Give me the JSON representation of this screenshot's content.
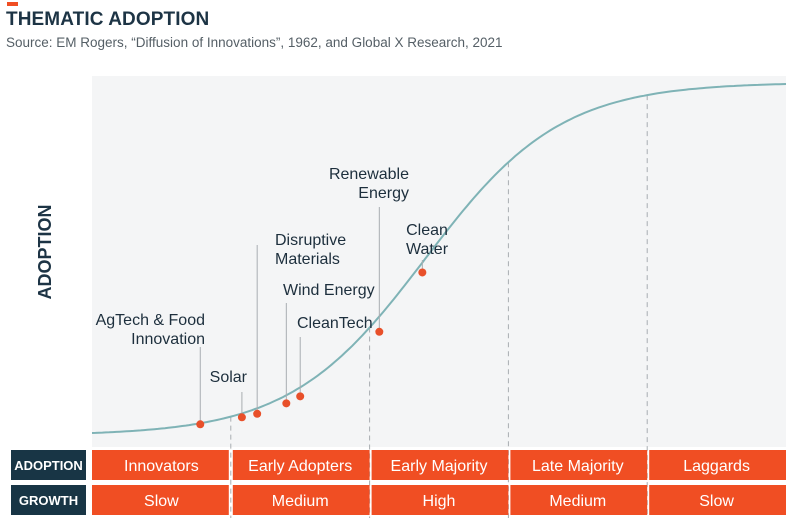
{
  "header": {
    "title": "THEMATIC ADOPTION",
    "subtitle": "Source: EM Rogers, “Diffusion of Innovations”, 1962, and Global X Research, 2021",
    "accent_color": "#f04e23"
  },
  "chart_data": {
    "type": "line",
    "curve": "s-curve",
    "title": "THEMATIC ADOPTION",
    "ylabel": "ADOPTION",
    "xlabel": "",
    "grid": false,
    "stages": [
      "Innovators",
      "Early Adopters",
      "Early Majority",
      "Late Majority",
      "Laggards"
    ],
    "stage_boundaries": [
      1,
      2,
      3,
      4
    ],
    "rows": [
      {
        "header": "ADOPTION",
        "values": [
          "Innovators",
          "Early Adopters",
          "Early Majority",
          "Late Majority",
          "Laggards"
        ]
      },
      {
        "header": "GROWTH",
        "values": [
          "Slow",
          "Medium",
          "High",
          "Medium",
          "Slow"
        ]
      }
    ],
    "themes": [
      {
        "label_lines": [
          "AgTech & Food",
          "Innovation"
        ],
        "x": 0.78,
        "y": 0.025
      },
      {
        "label_lines": [
          "Solar"
        ],
        "x": 1.08,
        "y": 0.045
      },
      {
        "label_lines": [
          "Disruptive",
          "Materials"
        ],
        "x": 1.19,
        "y": 0.055
      },
      {
        "label_lines": [
          "Wind Energy"
        ],
        "x": 1.4,
        "y": 0.085
      },
      {
        "label_lines": [
          "CleanTech"
        ],
        "x": 1.5,
        "y": 0.105
      },
      {
        "label_lines": [
          "Renewable",
          "Energy"
        ],
        "x": 2.07,
        "y": 0.29
      },
      {
        "label_lines": [
          "Clean",
          "Water"
        ],
        "x": 2.38,
        "y": 0.46
      }
    ],
    "colors": {
      "curve": "#7fb3b6",
      "points": "#e8502a",
      "plot_background": "#f4f5f6",
      "stage_fill": "#f04e23",
      "row_header_fill": "#183545",
      "divider": "#a8adb1"
    }
  }
}
